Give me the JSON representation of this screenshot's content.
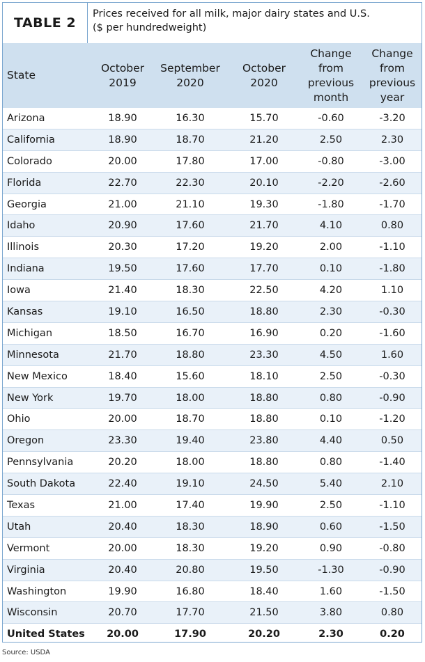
{
  "table_label": "TABLE 2",
  "caption_line1": "Prices received for all milk, major dairy states and U.S.",
  "caption_line2": "($ per hundredweight)",
  "headers": {
    "state": "State",
    "oct2019": [
      "October",
      "2019"
    ],
    "sep2020": [
      "September",
      "2020"
    ],
    "oct2020": [
      "October",
      "2020"
    ],
    "chg_month": [
      "Change",
      "from",
      "previous",
      "month"
    ],
    "chg_year": [
      "Change",
      "from",
      "previous",
      "year"
    ]
  },
  "rows": [
    [
      "Arizona",
      "18.90",
      "16.30",
      "15.70",
      "-0.60",
      "-3.20"
    ],
    [
      "California",
      "18.90",
      "18.70",
      "21.20",
      "2.50",
      "2.30"
    ],
    [
      "Colorado",
      "20.00",
      "17.80",
      "17.00",
      "-0.80",
      "-3.00"
    ],
    [
      "Florida",
      "22.70",
      "22.30",
      "20.10",
      "-2.20",
      "-2.60"
    ],
    [
      "Georgia",
      "21.00",
      "21.10",
      "19.30",
      "-1.80",
      "-1.70"
    ],
    [
      "Idaho",
      "20.90",
      "17.60",
      "21.70",
      "4.10",
      "0.80"
    ],
    [
      "Illinois",
      "20.30",
      "17.20",
      "19.20",
      "2.00",
      "-1.10"
    ],
    [
      "Indiana",
      "19.50",
      "17.60",
      "17.70",
      "0.10",
      "-1.80"
    ],
    [
      "Iowa",
      "21.40",
      "18.30",
      "22.50",
      "4.20",
      "1.10"
    ],
    [
      "Kansas",
      "19.10",
      "16.50",
      "18.80",
      "2.30",
      "-0.30"
    ],
    [
      "Michigan",
      "18.50",
      "16.70",
      "16.90",
      "0.20",
      "-1.60"
    ],
    [
      "Minnesota",
      "21.70",
      "18.80",
      "23.30",
      "4.50",
      "1.60"
    ],
    [
      "New Mexico",
      "18.40",
      "15.60",
      "18.10",
      "2.50",
      "-0.30"
    ],
    [
      "New York",
      "19.70",
      "18.00",
      "18.80",
      "0.80",
      "-0.90"
    ],
    [
      "Ohio",
      "20.00",
      "18.70",
      "18.80",
      "0.10",
      "-1.20"
    ],
    [
      "Oregon",
      "23.30",
      "19.40",
      "23.80",
      "4.40",
      "0.50"
    ],
    [
      "Pennsylvania",
      "20.20",
      "18.00",
      "18.80",
      "0.80",
      "-1.40"
    ],
    [
      "South Dakota",
      "22.40",
      "19.10",
      "24.50",
      "5.40",
      "2.10"
    ],
    [
      "Texas",
      "21.00",
      "17.40",
      "19.90",
      "2.50",
      "-1.10"
    ],
    [
      "Utah",
      "20.40",
      "18.30",
      "18.90",
      "0.60",
      "-1.50"
    ],
    [
      "Vermont",
      "20.00",
      "18.30",
      "19.20",
      "0.90",
      "-0.80"
    ],
    [
      "Virginia",
      "20.40",
      "20.80",
      "19.50",
      "-1.30",
      "-0.90"
    ],
    [
      "Washington",
      "19.90",
      "16.80",
      "18.40",
      "1.60",
      "-1.50"
    ],
    [
      "Wisconsin",
      "20.70",
      "17.70",
      "21.50",
      "3.80",
      "0.80"
    ]
  ],
  "total": [
    "United States",
    "20.00",
    "17.90",
    "20.20",
    "2.30",
    "0.20"
  ],
  "source": "Source: USDA",
  "colors": {
    "border": "#7aa6cf",
    "header_bg": "#cfe0ef",
    "alt_row_bg": "#e9f1f9"
  }
}
